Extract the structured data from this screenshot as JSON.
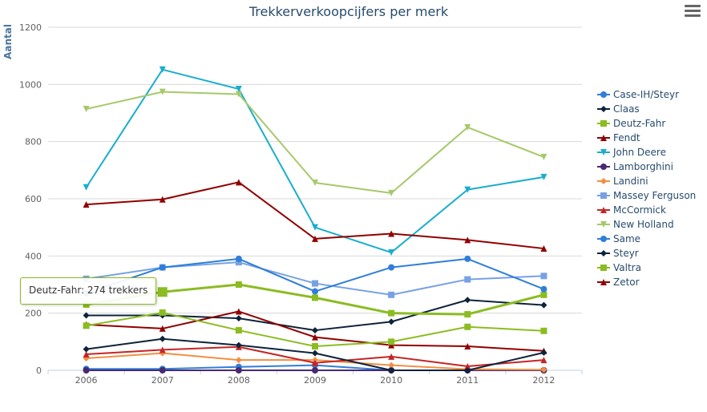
{
  "chart_data": {
    "type": "line",
    "title": "Trekkerverkoopcijfers per merk",
    "ylabel": "Aantal",
    "xlabel": "",
    "categories": [
      "2006",
      "2007",
      "2008",
      "2009",
      "2010",
      "2011",
      "2012"
    ],
    "ylim": [
      0,
      1200
    ],
    "yticks": [
      0,
      200,
      400,
      600,
      800,
      1000,
      1200
    ],
    "grid": "horizontal",
    "legend_position": "right",
    "series": [
      {
        "name": "Case-IH/Steyr",
        "color": "#2f7ed8",
        "marker": "circle",
        "values": [
          5,
          5,
          12,
          18,
          0,
          0,
          0
        ]
      },
      {
        "name": "Claas",
        "color": "#0d233a",
        "marker": "diamond",
        "values": [
          192,
          192,
          182,
          140,
          170,
          246,
          228
        ]
      },
      {
        "name": "Deutz-Fahr",
        "color": "#8bbc21",
        "marker": "square",
        "values": [
          230,
          274,
          300,
          254,
          200,
          196,
          264
        ]
      },
      {
        "name": "Fendt",
        "color": "#910000",
        "marker": "triangle",
        "values": [
          160,
          146,
          206,
          116,
          88,
          84,
          68
        ]
      },
      {
        "name": "John Deere",
        "color": "#1aadce",
        "marker": "triangle-down",
        "values": [
          640,
          1052,
          984,
          500,
          412,
          632,
          676
        ]
      },
      {
        "name": "Lamborghini",
        "color": "#492970",
        "marker": "circle",
        "values": [
          0,
          0,
          0,
          0,
          0,
          0,
          0
        ]
      },
      {
        "name": "Landini",
        "color": "#f28f43",
        "marker": "diamond",
        "values": [
          42,
          60,
          36,
          36,
          18,
          4,
          2
        ]
      },
      {
        "name": "Massey Ferguson",
        "color": "#77a1e5",
        "marker": "square",
        "values": [
          320,
          360,
          378,
          304,
          264,
          318,
          330
        ]
      },
      {
        "name": "McCormick",
        "color": "#c42525",
        "marker": "triangle",
        "values": [
          56,
          72,
          82,
          26,
          48,
          14,
          36
        ]
      },
      {
        "name": "New Holland",
        "color": "#a6c96a",
        "marker": "triangle-down",
        "values": [
          914,
          974,
          966,
          656,
          620,
          850,
          746
        ]
      },
      {
        "name": "Same",
        "color": "#2f7ed8",
        "marker": "circle",
        "values": [
          270,
          360,
          390,
          276,
          360,
          390,
          284
        ]
      },
      {
        "name": "Steyr",
        "color": "#0d233a",
        "marker": "diamond",
        "values": [
          74,
          110,
          88,
          60,
          0,
          0,
          62
        ]
      },
      {
        "name": "Valtra",
        "color": "#8bbc21",
        "marker": "square",
        "values": [
          156,
          202,
          140,
          84,
          100,
          152,
          138
        ]
      },
      {
        "name": "Zetor",
        "color": "#910000",
        "marker": "triangle",
        "values": [
          580,
          598,
          658,
          460,
          478,
          456,
          426
        ]
      }
    ],
    "highlighted_series": "Deutz-Fahr",
    "tooltip": "Deutz-Fahr: 274 trekkers"
  }
}
